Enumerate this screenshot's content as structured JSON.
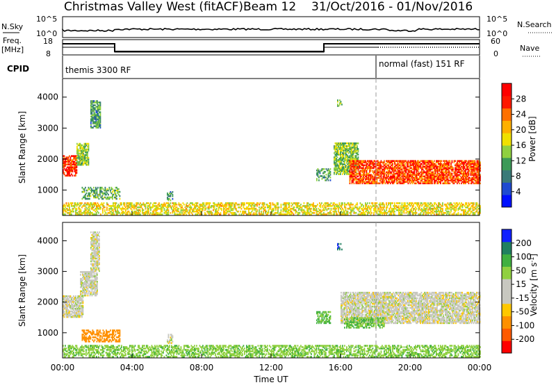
{
  "header": {
    "station": "Christmas Valley West (fitACF)",
    "beam": "Beam 12",
    "date_range": "31/Oct/2016 - 01/Nov/2016"
  },
  "top_panels": {
    "nsky_label": "N.Sky",
    "nsky_ticks": [
      "10^5",
      "10^0"
    ],
    "nsearch_label": "N.Search",
    "nsearch_ticks": [
      "10^5",
      "10^0"
    ],
    "freq_label": "Freq.",
    "freq_unit": "[MHz]",
    "freq_ticks": [
      "18",
      "8"
    ],
    "nave_label": "Nave",
    "nave_ticks": [
      "60",
      "0"
    ],
    "cpid_label": "CPID",
    "cpid_segments": [
      {
        "label": "themis 3300 RF",
        "start_hour": 0,
        "end_hour": 18
      },
      {
        "label": "normal (fast) 151 RF",
        "start_hour": 18,
        "end_hour": 24
      }
    ]
  },
  "colors": {
    "power": [
      "#0010ff",
      "#1f4bd0",
      "#3a7a78",
      "#3c9a58",
      "#8fd040",
      "#f0e000",
      "#ffb000",
      "#ff7000",
      "#ff1800",
      "#ff0000"
    ],
    "velocity": [
      "#ff0000",
      "#ff5a00",
      "#ff9000",
      "#ffc800",
      "#c8c8c0",
      "#c8c8c0",
      "#90d040",
      "#40b040",
      "#208060",
      "#1020ff"
    ]
  },
  "chart_data": [
    {
      "type": "heatmap",
      "name": "power",
      "ylabel": "Slant Range [km]",
      "yticks": [
        1000,
        2000,
        3000,
        4000
      ],
      "ylim": [
        180,
        4600
      ],
      "xlim": [
        0,
        24
      ],
      "colorbar": {
        "label": "Power [dB]",
        "ticks": [
          "4",
          "8",
          "12",
          "16",
          "20",
          "24",
          "28"
        ],
        "range": [
          0,
          32
        ]
      },
      "regions": [
        {
          "hours": [
            0,
            0.8
          ],
          "range_km": [
            1450,
            2100
          ],
          "power_db": 28
        },
        {
          "hours": [
            0.8,
            1.5
          ],
          "range_km": [
            1800,
            2500
          ],
          "power_db": 14
        },
        {
          "hours": [
            1.6,
            2.2
          ],
          "range_km": [
            3000,
            3900
          ],
          "power_db": 10
        },
        {
          "hours": [
            1.1,
            3.3
          ],
          "range_km": [
            700,
            1100
          ],
          "power_db": 12
        },
        {
          "hours": [
            6.0,
            6.3
          ],
          "range_km": [
            650,
            950
          ],
          "power_db": 10
        },
        {
          "hours": [
            0,
            24
          ],
          "range_km": [
            200,
            600
          ],
          "power_db": 18
        },
        {
          "hours": [
            14.6,
            15.4
          ],
          "range_km": [
            1300,
            1700
          ],
          "power_db": 10
        },
        {
          "hours": [
            15.8,
            16.1
          ],
          "range_km": [
            3700,
            3900
          ],
          "power_db": 12
        },
        {
          "hours": [
            15.6,
            17.0
          ],
          "range_km": [
            1500,
            2500
          ],
          "power_db": 14
        },
        {
          "hours": [
            16.5,
            24
          ],
          "range_km": [
            1200,
            1950
          ],
          "power_db": 27
        }
      ]
    },
    {
      "type": "heatmap",
      "name": "velocity",
      "ylabel": "Slant Range [km]",
      "yticks": [
        1000,
        2000,
        3000,
        4000
      ],
      "ylim": [
        180,
        4600
      ],
      "xlim": [
        0,
        24
      ],
      "xticks": [
        "00:00",
        "04:00",
        "08:00",
        "12:00",
        "16:00",
        "20:00",
        "00:00"
      ],
      "xlabel": "Time UT",
      "colorbar": {
        "label": "Velocity [m s^-1]",
        "ticks": [
          "-200",
          "-100",
          "-50",
          "-15",
          "15",
          "50",
          "100",
          "200"
        ],
        "range": [
          -250,
          250
        ]
      },
      "regions": [
        {
          "hours": [
            0,
            1.2
          ],
          "range_km": [
            1500,
            2200
          ],
          "velocity": 0
        },
        {
          "hours": [
            1.0,
            2.0
          ],
          "range_km": [
            2200,
            3000
          ],
          "velocity": 0
        },
        {
          "hours": [
            1.6,
            2.1
          ],
          "range_km": [
            3000,
            4300
          ],
          "velocity": 0
        },
        {
          "hours": [
            1.1,
            3.3
          ],
          "range_km": [
            700,
            1100
          ],
          "velocity": -80
        },
        {
          "hours": [
            6.0,
            6.3
          ],
          "range_km": [
            650,
            950
          ],
          "velocity": 0
        },
        {
          "hours": [
            0,
            24
          ],
          "range_km": [
            200,
            600
          ],
          "velocity": 40
        },
        {
          "hours": [
            14.6,
            15.4
          ],
          "range_km": [
            1300,
            1700
          ],
          "velocity": 60
        },
        {
          "hours": [
            15.8,
            16.1
          ],
          "range_km": [
            3700,
            3900
          ],
          "velocity": 200
        },
        {
          "hours": [
            16.0,
            24
          ],
          "range_km": [
            1300,
            2300
          ],
          "velocity": 0
        },
        {
          "hours": [
            16.2,
            18.5
          ],
          "range_km": [
            1150,
            1500
          ],
          "velocity": 50
        }
      ]
    }
  ]
}
